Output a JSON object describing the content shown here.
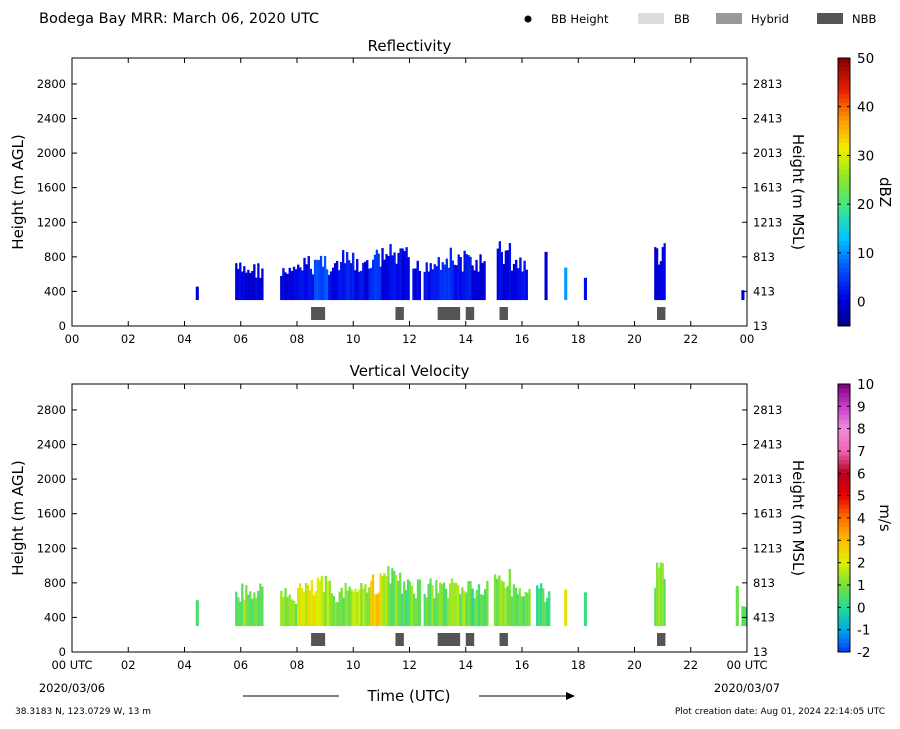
{
  "header": {
    "title": "Bodega Bay MRR:  March 06, 2020 UTC",
    "legend": [
      {
        "label": "BB Height",
        "symbol": "dot",
        "color": "#000000"
      },
      {
        "label": "BB",
        "symbol": "box",
        "color": "#dcdcdc"
      },
      {
        "label": "Hybrid",
        "symbol": "box",
        "color": "#999999"
      },
      {
        "label": "NBB",
        "symbol": "box",
        "color": "#555555"
      }
    ]
  },
  "footer": {
    "coords": "38.3183 N, 123.0729 W, 13 m",
    "created": "Plot creation date: Aug 01, 2024 22:14:05 UTC",
    "date_start": "2020/03/06",
    "date_end": "2020/03/07",
    "time_label": "Time (UTC)"
  },
  "chart_data": [
    {
      "type": "heatmap",
      "title": "Reflectivity",
      "xlabel": "",
      "ylabel": "Height (m AGL)",
      "ylabel_right": "Height (m MSL)",
      "x_ticks": [
        "00",
        "02",
        "04",
        "06",
        "08",
        "10",
        "12",
        "14",
        "16",
        "18",
        "20",
        "22",
        "00"
      ],
      "xlim": [
        0,
        24
      ],
      "ylim": [
        0,
        3100
      ],
      "y_ticks_left": [
        "0",
        "400",
        "800",
        "1200",
        "1600",
        "2000",
        "2400",
        "2800"
      ],
      "y_ticks_right": [
        "13",
        "413",
        "813",
        "1213",
        "1613",
        "2013",
        "2413",
        "2813"
      ],
      "colorbar": {
        "unit": "dBZ",
        "ticks": [
          "0",
          "10",
          "20",
          "30",
          "40",
          "50"
        ],
        "range": [
          -5,
          50
        ]
      },
      "echo_segments": [
        {
          "t0": 4.4,
          "t1": 4.5,
          "top": 500,
          "v": 0
        },
        {
          "t0": 5.8,
          "t1": 6.8,
          "top": 750,
          "v": 0
        },
        {
          "t0": 7.4,
          "t1": 8.0,
          "top": 700,
          "v": 0
        },
        {
          "t0": 8.0,
          "t1": 8.6,
          "top": 820,
          "v": 2
        },
        {
          "t0": 8.6,
          "t1": 9.1,
          "top": 880,
          "v": 6
        },
        {
          "t0": 9.1,
          "t1": 9.6,
          "top": 800,
          "v": 1
        },
        {
          "t0": 9.6,
          "t1": 10.1,
          "top": 880,
          "v": 2
        },
        {
          "t0": 10.1,
          "t1": 10.6,
          "top": 780,
          "v": 1
        },
        {
          "t0": 10.6,
          "t1": 11.0,
          "top": 900,
          "v": 5
        },
        {
          "t0": 11.0,
          "t1": 11.5,
          "top": 950,
          "v": 1
        },
        {
          "t0": 11.5,
          "t1": 12.0,
          "top": 920,
          "v": 1
        },
        {
          "t0": 12.1,
          "t1": 12.4,
          "top": 780,
          "v": 0
        },
        {
          "t0": 12.5,
          "t1": 13.0,
          "top": 850,
          "v": 1
        },
        {
          "t0": 13.0,
          "t1": 13.5,
          "top": 920,
          "v": 4
        },
        {
          "t0": 13.5,
          "t1": 14.2,
          "top": 880,
          "v": 2
        },
        {
          "t0": 14.2,
          "t1": 14.7,
          "top": 850,
          "v": 0
        },
        {
          "t0": 15.1,
          "t1": 15.6,
          "top": 1000,
          "v": 1
        },
        {
          "t0": 15.6,
          "t1": 16.2,
          "top": 850,
          "v": 1
        },
        {
          "t0": 16.8,
          "t1": 16.9,
          "top": 880,
          "v": 0
        },
        {
          "t0": 17.5,
          "t1": 17.6,
          "top": 700,
          "v": 10
        },
        {
          "t0": 18.2,
          "t1": 18.3,
          "top": 650,
          "v": 0
        },
        {
          "t0": 20.7,
          "t1": 21.1,
          "top": 1000,
          "v": 0
        },
        {
          "t0": 23.8,
          "t1": 23.9,
          "top": 500,
          "v": 0
        }
      ],
      "nbb_blocks": [
        [
          8.5,
          9.0
        ],
        [
          11.5,
          11.8
        ],
        [
          13.0,
          13.8
        ],
        [
          14.0,
          14.3
        ],
        [
          15.2,
          15.5
        ],
        [
          20.8,
          21.1
        ]
      ]
    },
    {
      "type": "heatmap",
      "title": "Vertical Velocity",
      "xlabel": "",
      "ylabel": "Height (m AGL)",
      "ylabel_right": "Height (m MSL)",
      "x_ticks": [
        "00 UTC",
        "02",
        "04",
        "06",
        "08",
        "10",
        "12",
        "14",
        "16",
        "18",
        "20",
        "22",
        "00 UTC"
      ],
      "xlim": [
        0,
        24
      ],
      "ylim": [
        0,
        3100
      ],
      "y_ticks_left": [
        "0",
        "400",
        "800",
        "1200",
        "1600",
        "2000",
        "2400",
        "2800"
      ],
      "y_ticks_right": [
        "13",
        "413",
        "813",
        "1213",
        "1613",
        "2013",
        "2413",
        "2813"
      ],
      "colorbar": {
        "unit": "m/s",
        "ticks": [
          "-2",
          "-1",
          "0",
          "1",
          "2",
          "3",
          "4",
          "5",
          "6",
          "7",
          "8",
          "9",
          "10"
        ],
        "range": [
          -2,
          10
        ]
      },
      "echo_segments": [
        {
          "t0": 4.4,
          "t1": 4.5,
          "top": 600,
          "v": 0.5
        },
        {
          "t0": 5.8,
          "t1": 6.8,
          "top": 800,
          "v": 1.0
        },
        {
          "t0": 7.4,
          "t1": 8.0,
          "top": 750,
          "v": 1.0
        },
        {
          "t0": 8.0,
          "t1": 8.7,
          "top": 850,
          "v": 2.0
        },
        {
          "t0": 8.7,
          "t1": 9.2,
          "top": 900,
          "v": 1.5
        },
        {
          "t0": 9.2,
          "t1": 9.9,
          "top": 800,
          "v": 0.8
        },
        {
          "t0": 9.9,
          "t1": 10.6,
          "top": 900,
          "v": 1.5
        },
        {
          "t0": 10.6,
          "t1": 11.0,
          "top": 950,
          "v": 2.5
        },
        {
          "t0": 11.0,
          "t1": 11.7,
          "top": 1000,
          "v": 1.2
        },
        {
          "t0": 11.7,
          "t1": 12.4,
          "top": 850,
          "v": 0.8
        },
        {
          "t0": 12.5,
          "t1": 13.4,
          "top": 880,
          "v": 1.0
        },
        {
          "t0": 13.4,
          "t1": 14.2,
          "top": 900,
          "v": 1.2
        },
        {
          "t0": 14.2,
          "t1": 14.8,
          "top": 850,
          "v": 0.5
        },
        {
          "t0": 15.0,
          "t1": 15.6,
          "top": 1000,
          "v": 1.0
        },
        {
          "t0": 15.6,
          "t1": 16.3,
          "top": 850,
          "v": 0.6
        },
        {
          "t0": 16.5,
          "t1": 17.0,
          "top": 800,
          "v": 0.4
        },
        {
          "t0": 17.5,
          "t1": 17.6,
          "top": 750,
          "v": 2.0
        },
        {
          "t0": 18.2,
          "t1": 18.3,
          "top": 700,
          "v": 0.5
        },
        {
          "t0": 20.7,
          "t1": 21.1,
          "top": 1050,
          "v": 1.0
        },
        {
          "t0": 23.6,
          "t1": 23.7,
          "top": 800,
          "v": 0.5
        },
        {
          "t0": 23.8,
          "t1": 24.0,
          "top": 600,
          "v": 0.5
        }
      ],
      "nbb_blocks": [
        [
          8.5,
          9.0
        ],
        [
          11.5,
          11.8
        ],
        [
          13.0,
          13.8
        ],
        [
          14.0,
          14.3
        ],
        [
          15.2,
          15.5
        ],
        [
          20.8,
          21.1
        ]
      ]
    }
  ]
}
